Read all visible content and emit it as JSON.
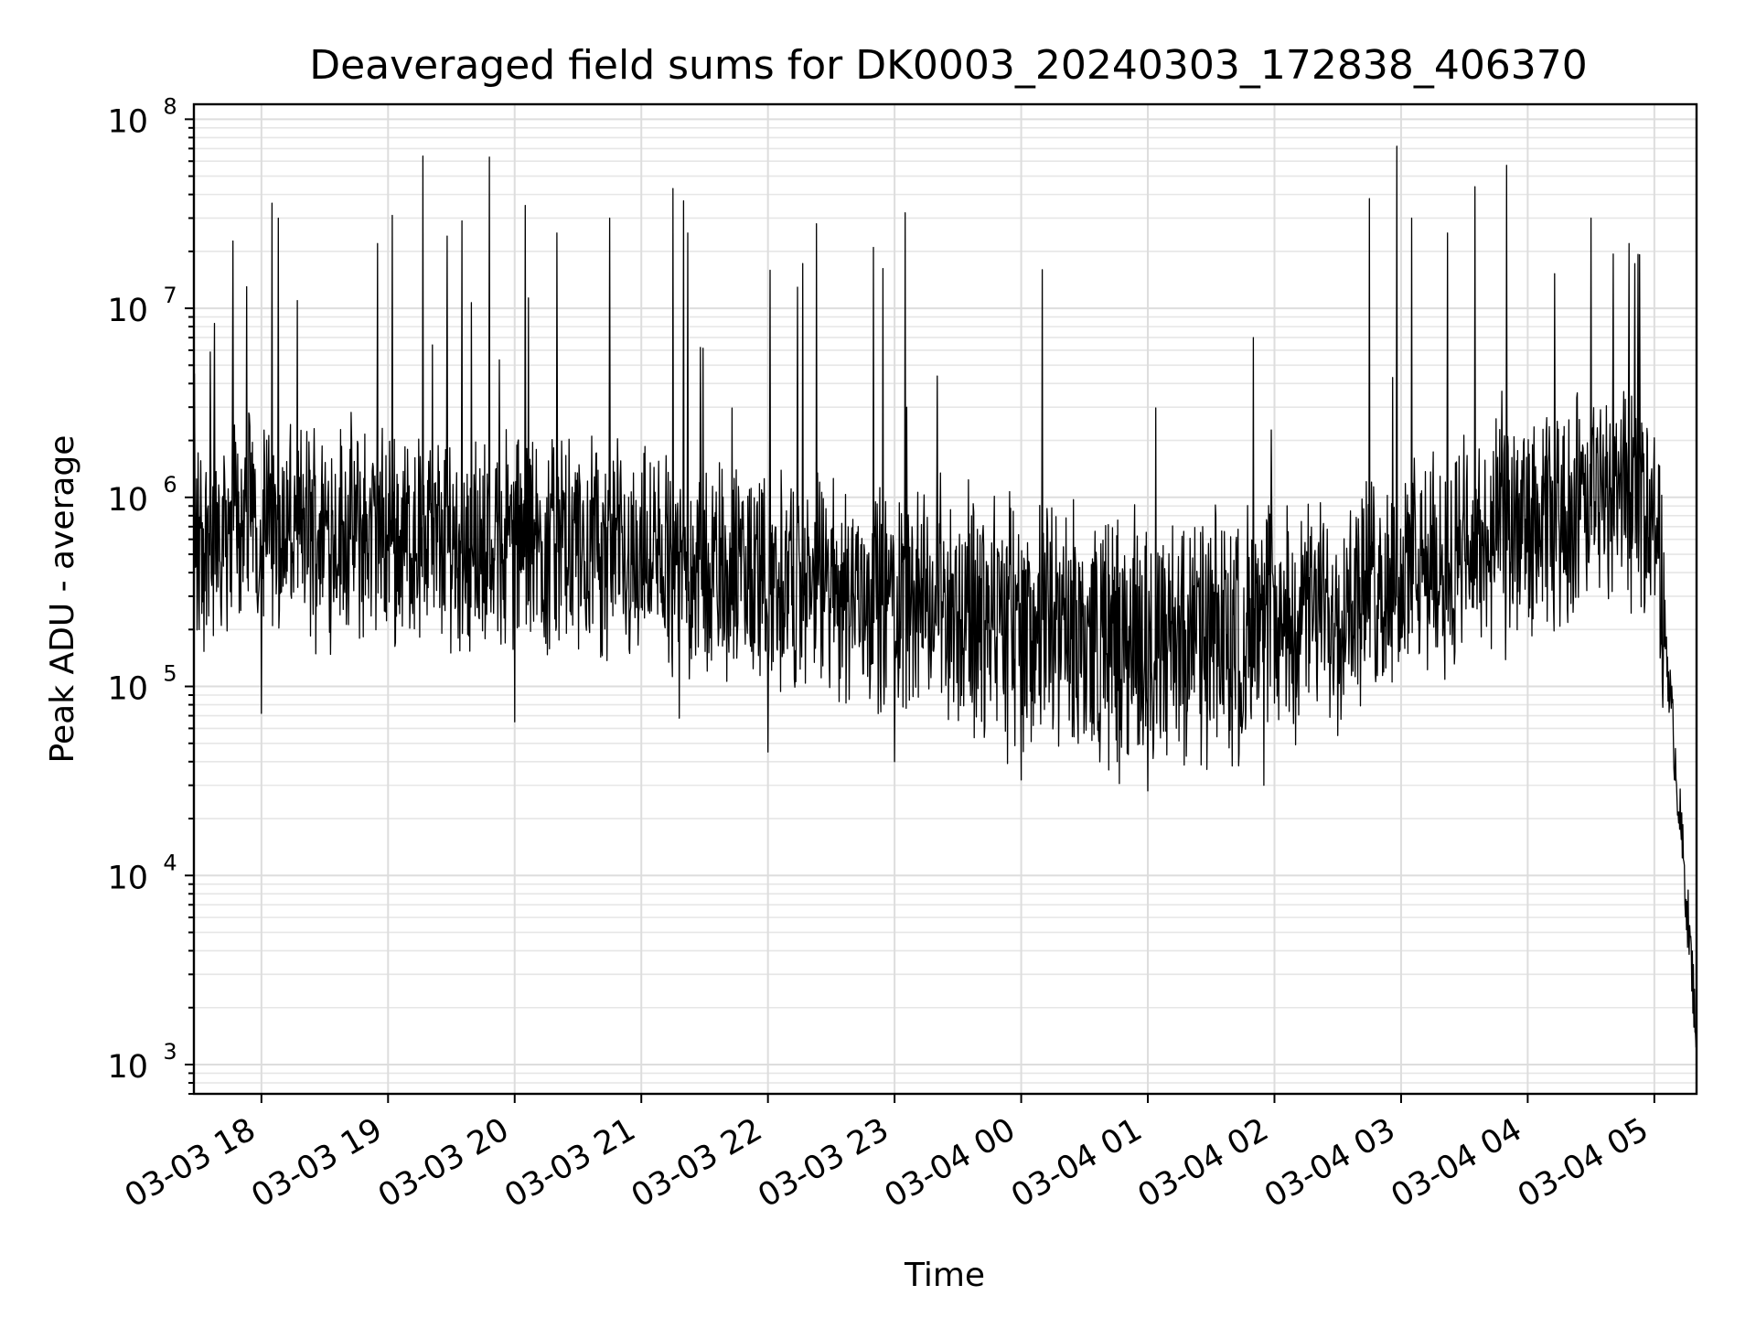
{
  "chart_data": {
    "type": "line",
    "title": "Deaveraged field sums for DK0003_20240303_172838_406370",
    "xlabel": "Time",
    "ylabel": "Peak ADU - average",
    "yscale": "log",
    "ylim": [
      700,
      120000000
    ],
    "xlim": [
      "2024-03-03 17:28",
      "2024-03-04 05:20"
    ],
    "grid": true,
    "x_ticks": [
      {
        "value": "2024-03-03 18:00",
        "label": "03-03 18"
      },
      {
        "value": "2024-03-03 19:00",
        "label": "03-03 19"
      },
      {
        "value": "2024-03-03 20:00",
        "label": "03-03 20"
      },
      {
        "value": "2024-03-03 21:00",
        "label": "03-03 21"
      },
      {
        "value": "2024-03-03 22:00",
        "label": "03-03 22"
      },
      {
        "value": "2024-03-03 23:00",
        "label": "03-03 23"
      },
      {
        "value": "2024-03-04 00:00",
        "label": "03-04 00"
      },
      {
        "value": "2024-03-04 01:00",
        "label": "03-04 01"
      },
      {
        "value": "2024-03-04 02:00",
        "label": "03-04 02"
      },
      {
        "value": "2024-03-04 03:00",
        "label": "03-04 03"
      },
      {
        "value": "2024-03-04 04:00",
        "label": "03-04 04"
      },
      {
        "value": "2024-03-04 05:00",
        "label": "03-04 05"
      }
    ],
    "y_ticks": [
      {
        "value": 1000,
        "base": "10",
        "exp": "3"
      },
      {
        "value": 10000,
        "base": "10",
        "exp": "4"
      },
      {
        "value": 100000,
        "base": "10",
        "exp": "5"
      },
      {
        "value": 1000000,
        "base": "10",
        "exp": "6"
      },
      {
        "value": 10000000,
        "base": "10",
        "exp": "7"
      },
      {
        "value": 100000000,
        "base": "10",
        "exp": "8"
      }
    ],
    "series": [
      {
        "color": "#000000",
        "x": [
          "2024-03-03 17:28",
          "2024-03-03 17:35",
          "2024-03-03 17:45",
          "2024-03-03 18:00",
          "2024-03-03 18:15",
          "2024-03-03 18:30",
          "2024-03-03 18:45",
          "2024-03-03 19:00",
          "2024-03-03 19:15",
          "2024-03-03 19:30",
          "2024-03-03 19:45",
          "2024-03-03 20:00",
          "2024-03-03 20:15",
          "2024-03-03 20:30",
          "2024-03-03 20:45",
          "2024-03-03 21:00",
          "2024-03-03 21:15",
          "2024-03-03 21:30",
          "2024-03-03 21:45",
          "2024-03-03 22:00",
          "2024-03-03 22:15",
          "2024-03-03 22:30",
          "2024-03-03 22:45",
          "2024-03-03 23:00",
          "2024-03-03 23:15",
          "2024-03-03 23:30",
          "2024-03-03 23:45",
          "2024-03-04 00:00",
          "2024-03-04 00:15",
          "2024-03-04 00:30",
          "2024-03-04 00:45",
          "2024-03-04 01:00",
          "2024-03-04 01:15",
          "2024-03-04 01:30",
          "2024-03-04 01:45",
          "2024-03-04 02:00",
          "2024-03-04 02:15",
          "2024-03-04 02:30",
          "2024-03-04 02:45",
          "2024-03-04 03:00",
          "2024-03-04 03:15",
          "2024-03-04 03:30",
          "2024-03-04 03:45",
          "2024-03-04 04:00",
          "2024-03-04 04:15",
          "2024-03-04 04:30",
          "2024-03-04 04:45",
          "2024-03-04 04:55",
          "2024-03-04 05:00",
          "2024-03-04 05:05",
          "2024-03-04 05:10",
          "2024-03-04 05:15",
          "2024-03-04 05:20"
        ],
        "y": [
          450000,
          600000,
          800000,
          700000,
          650000,
          700000,
          650000,
          600000,
          620000,
          580000,
          560000,
          600000,
          560000,
          520000,
          500000,
          480000,
          460000,
          420000,
          400000,
          380000,
          360000,
          330000,
          320000,
          300000,
          280000,
          250000,
          230000,
          210000,
          190000,
          180000,
          170000,
          160000,
          165000,
          170000,
          180000,
          200000,
          240000,
          280000,
          320000,
          370000,
          430000,
          500000,
          560000,
          650000,
          750000,
          900000,
          1100000,
          1000000,
          900000,
          200000,
          40000,
          8000,
          1500
        ]
      }
    ],
    "spikes": [
      {
        "x": "2024-03-03 17:53",
        "y": 13000000
      },
      {
        "x": "2024-03-03 18:05",
        "y": 36000000
      },
      {
        "x": "2024-03-03 18:08",
        "y": 30000000
      },
      {
        "x": "2024-03-03 18:55",
        "y": 22000000
      },
      {
        "x": "2024-03-03 19:02",
        "y": 31000000
      },
      {
        "x": "2024-03-03 19:35",
        "y": 29000000
      },
      {
        "x": "2024-03-03 19:48",
        "y": 63000000
      },
      {
        "x": "2024-03-03 20:05",
        "y": 35000000
      },
      {
        "x": "2024-03-03 20:20",
        "y": 25000000
      },
      {
        "x": "2024-03-03 20:45",
        "y": 30000000
      },
      {
        "x": "2024-03-03 21:15",
        "y": 43000000
      },
      {
        "x": "2024-03-03 21:20",
        "y": 37000000
      },
      {
        "x": "2024-03-03 21:22",
        "y": 25000000
      },
      {
        "x": "2024-03-03 22:23",
        "y": 28000000
      },
      {
        "x": "2024-03-03 22:50",
        "y": 21000000
      },
      {
        "x": "2024-03-03 23:05",
        "y": 32000000
      },
      {
        "x": "2024-03-04 00:10",
        "y": 16000000
      },
      {
        "x": "2024-03-04 01:50",
        "y": 7000000
      },
      {
        "x": "2024-03-04 02:45",
        "y": 38000000
      },
      {
        "x": "2024-03-04 02:58",
        "y": 72000000
      },
      {
        "x": "2024-03-04 03:05",
        "y": 30000000
      },
      {
        "x": "2024-03-04 03:22",
        "y": 25000000
      },
      {
        "x": "2024-03-04 03:35",
        "y": 44000000
      },
      {
        "x": "2024-03-04 03:50",
        "y": 57000000
      },
      {
        "x": "2024-03-04 04:30",
        "y": 30000000
      },
      {
        "x": "2024-03-04 04:48",
        "y": 22000000
      }
    ],
    "dips": [
      {
        "x": "2024-03-03 18:00",
        "y": 72000
      },
      {
        "x": "2024-03-03 20:00",
        "y": 65000
      },
      {
        "x": "2024-03-03 21:18",
        "y": 68000
      },
      {
        "x": "2024-03-03 22:00",
        "y": 45000
      },
      {
        "x": "2024-03-03 23:00",
        "y": 40000
      },
      {
        "x": "2024-03-04 00:00",
        "y": 32000
      },
      {
        "x": "2024-03-04 01:00",
        "y": 28000
      },
      {
        "x": "2024-03-04 01:55",
        "y": 30000
      },
      {
        "x": "2024-03-04 02:30",
        "y": 55000
      }
    ]
  }
}
